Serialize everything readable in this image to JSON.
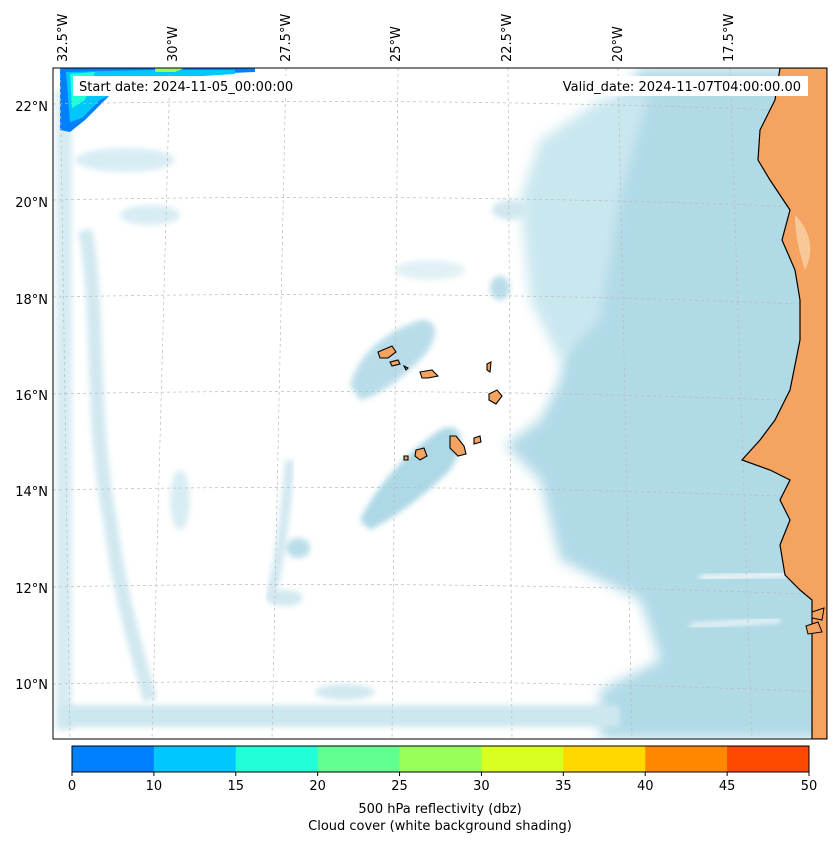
{
  "map": {
    "start_date": "Start date: 2024-11-05_00:00:00",
    "valid_date": "Valid_date: 2024-11-07T04:00:00.00",
    "lon_labels": [
      "32.5°W",
      "30°W",
      "27.5°W",
      "25°W",
      "22.5°W",
      "20°W",
      "17.5°W"
    ],
    "lat_labels": [
      "22°N",
      "20°N",
      "18°N",
      "16°N",
      "14°N",
      "12°N",
      "10°N"
    ],
    "land_color": "#f4a460",
    "cloud_color": "#add8e6",
    "ocean_color": "#ffffff"
  },
  "colorbar": {
    "ticks": [
      "0",
      "10",
      "15",
      "20",
      "25",
      "30",
      "35",
      "40",
      "45",
      "50"
    ],
    "colors": [
      "#0080ff",
      "#00c8ff",
      "#20ffd8",
      "#60ff90",
      "#98ff58",
      "#d8ff20",
      "#ffd800",
      "#ff8800",
      "#ff4800"
    ],
    "label_line1": "500 hPa reflectivity (dbz)",
    "label_line2": "Cloud cover (white background shading)"
  }
}
